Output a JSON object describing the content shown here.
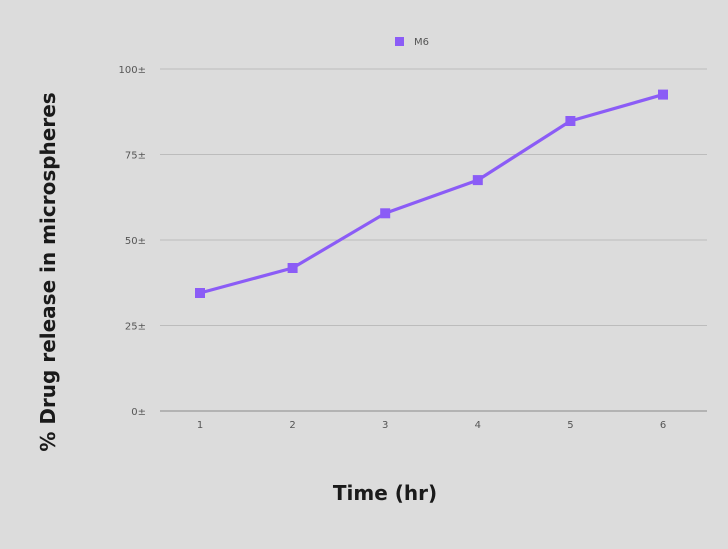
{
  "chart_data": {
    "type": "line",
    "title": "",
    "xlabel": "Time (hr)",
    "ylabel": "% Drug release in microspheres",
    "categories": [
      "1",
      "2",
      "3",
      "4",
      "5",
      "6"
    ],
    "series": [
      {
        "name": "M6",
        "values": [
          34.5,
          41.8,
          57.8,
          67.5,
          84.8,
          92.5
        ],
        "color": "#8b5cf6"
      }
    ],
    "ylim": [
      0,
      100
    ],
    "yticks": [
      0,
      25,
      50,
      75,
      100
    ],
    "ytick_labels": [
      "0±",
      "25±",
      "50±",
      "75±",
      "100±"
    ],
    "grid": true,
    "legend_position": "top-center",
    "background": "#dcdcdc"
  }
}
